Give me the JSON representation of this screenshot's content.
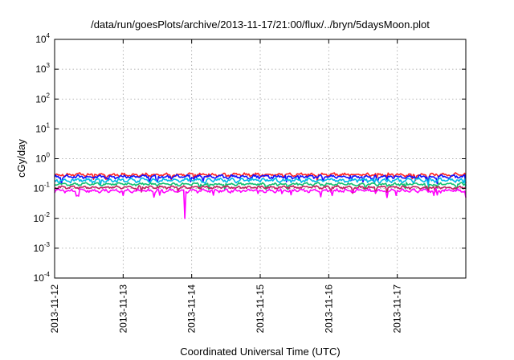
{
  "chart_data": {
    "type": "line",
    "title": "/data/run/goesPlots/archive/2013-11-17/21:00/flux/../bryn/5daysMoon.plot",
    "xlabel": "Coordinated Universal Time (UTC)",
    "ylabel": "cGy/day",
    "yscale": "log",
    "ylim": [
      0.0001,
      10000
    ],
    "yticks": [
      {
        "base": "10",
        "exp": "4",
        "value": 10000
      },
      {
        "base": "10",
        "exp": "3",
        "value": 1000
      },
      {
        "base": "10",
        "exp": "2",
        "value": 100
      },
      {
        "base": "10",
        "exp": "1",
        "value": 10
      },
      {
        "base": "10",
        "exp": "0",
        "value": 1
      },
      {
        "base": "10",
        "exp": "-1",
        "value": 0.1
      },
      {
        "base": "10",
        "exp": "-2",
        "value": 0.01
      },
      {
        "base": "10",
        "exp": "-3",
        "value": 0.001
      },
      {
        "base": "10",
        "exp": "-4",
        "value": 0.0001
      }
    ],
    "xlim": [
      "2013-11-12",
      "2013-11-18"
    ],
    "xticks": [
      "2013-11-12",
      "2013-11-13",
      "2013-11-14",
      "2013-11-15",
      "2013-11-16",
      "2013-11-17"
    ],
    "grid": true,
    "series": [
      {
        "color": "#ff2020",
        "base": 0.29,
        "amp": 0.12,
        "events": [
          {
            "x": 4.85,
            "y": 0.24
          },
          {
            "x": 5.45,
            "y": 0.17
          },
          {
            "x": 6.0,
            "y": 0.15
          }
        ]
      },
      {
        "color": "#1010ff",
        "base": 0.25,
        "amp": 0.12,
        "events": [
          {
            "x": 4.85,
            "y": 0.2
          },
          {
            "x": 5.45,
            "y": 0.15
          },
          {
            "x": 6.0,
            "y": 0.12
          }
        ]
      },
      {
        "color": "#00b8e8",
        "base": 0.19,
        "amp": 0.14,
        "events": [
          {
            "x": 4.85,
            "y": 0.17
          },
          {
            "x": 5.45,
            "y": 0.13
          },
          {
            "x": 6.0,
            "y": 0.1
          }
        ]
      },
      {
        "color": "#10c070",
        "base": 0.14,
        "amp": 0.1,
        "events": [
          {
            "x": 4.85,
            "y": 0.12
          },
          {
            "x": 5.45,
            "y": 0.1
          }
        ]
      },
      {
        "color": "#c02060",
        "base": 0.11,
        "amp": 0.1,
        "events": [
          {
            "x": 4.85,
            "y": 0.1
          },
          {
            "x": 5.45,
            "y": 0.08
          }
        ]
      },
      {
        "color": "#ff00ff",
        "base": 0.085,
        "amp": 0.12,
        "events": [
          {
            "x": 1.9,
            "y": 0.01
          },
          {
            "x": 4.85,
            "y": 0.05
          },
          {
            "x": 6.0,
            "y": 0.05
          }
        ]
      }
    ]
  }
}
